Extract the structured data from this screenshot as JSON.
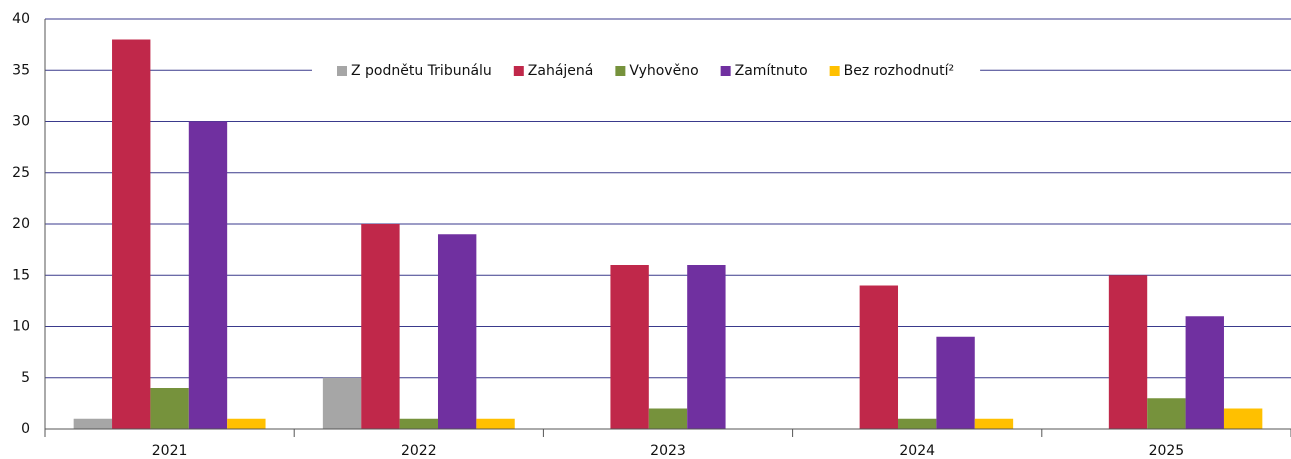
{
  "chart_data": {
    "type": "bar",
    "categories": [
      "2021",
      "2022",
      "2023",
      "2024",
      "2025"
    ],
    "series": [
      {
        "name": "Z podnětu Tribunálu",
        "color": "#a6a6a6",
        "values": [
          1,
          5,
          0,
          0,
          0
        ]
      },
      {
        "name": "Zahájená",
        "color": "#c0284a",
        "values": [
          38,
          20,
          16,
          14,
          15
        ]
      },
      {
        "name": "Vyhověno",
        "color": "#76923c",
        "values": [
          4,
          1,
          2,
          1,
          3
        ]
      },
      {
        "name": "Zamítnuto",
        "color": "#7030a0",
        "values": [
          30,
          19,
          16,
          9,
          11
        ]
      },
      {
        "name": "Bez rozhodnutí²",
        "color": "#ffc000",
        "values": [
          1,
          1,
          0,
          1,
          2
        ]
      }
    ],
    "ylim": [
      0,
      40
    ],
    "yticks": [
      0,
      5,
      10,
      15,
      20,
      25,
      30,
      35,
      40
    ],
    "grid": true,
    "legend": "top"
  }
}
